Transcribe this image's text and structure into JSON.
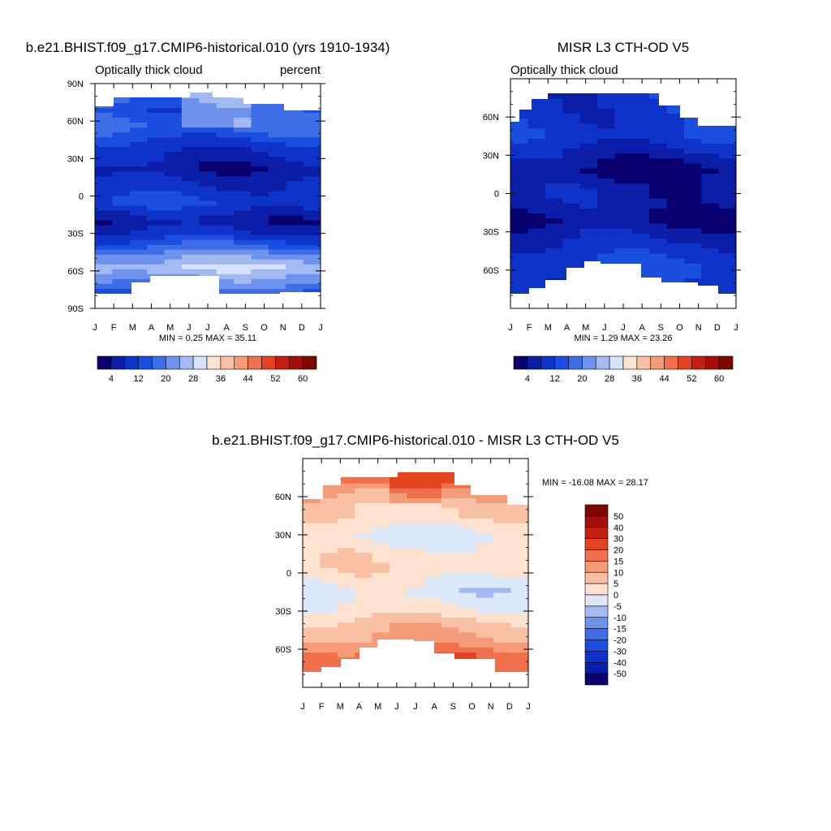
{
  "chart_data": [
    {
      "type": "heatmap",
      "title": "b.e21.BHIST.f09_g17.CMIP6-historical.010 (yrs 1910-1934)",
      "subtitle_left": "Optically thick cloud",
      "subtitle_right": "percent",
      "x_ticks": [
        "J",
        "F",
        "M",
        "A",
        "M",
        "J",
        "J",
        "A",
        "S",
        "O",
        "N",
        "D",
        "J"
      ],
      "y_ticks": [
        "90N",
        "60N",
        "30N",
        "0",
        "30S",
        "60S",
        "90S"
      ],
      "y_values": [
        90,
        60,
        30,
        0,
        -30,
        -60,
        -90
      ],
      "ylim": [
        -90,
        90
      ],
      "stats": "MIN =   0.25 MAX =  35.11",
      "colorbar_labels": [
        "4",
        "12",
        "20",
        "28",
        "36",
        "44",
        "52",
        "60"
      ],
      "colorbar_colors": [
        "#08006e",
        "#0a1ea8",
        "#0d33c8",
        "#1a4ee0",
        "#3d6ee8",
        "#6d93ec",
        "#a2b9f2",
        "#d4e2fb",
        "#fde2d0",
        "#f9c0a4",
        "#f59b78",
        "#ef704a",
        "#e2431e",
        "#c32010",
        "#a40f07",
        "#7d0500"
      ],
      "profile": [
        {
          "lat": 78,
          "v": 18
        },
        {
          "lat": 68,
          "v": 14
        },
        {
          "lat": 55,
          "v": 17
        },
        {
          "lat": 40,
          "v": 10
        },
        {
          "lat": 22,
          "v": 5
        },
        {
          "lat": 8,
          "v": 9
        },
        {
          "lat": -5,
          "v": 12
        },
        {
          "lat": -20,
          "v": 5
        },
        {
          "lat": -32,
          "v": 10
        },
        {
          "lat": -45,
          "v": 20
        },
        {
          "lat": -57,
          "v": 28
        },
        {
          "lat": -68,
          "v": 22
        },
        {
          "lat": -76,
          "v": 16
        }
      ]
    },
    {
      "type": "heatmap",
      "title": "MISR L3 CTH-OD V5",
      "subtitle_left": "Optically thick cloud",
      "x_ticks": [
        "J",
        "F",
        "M",
        "A",
        "M",
        "J",
        "J",
        "A",
        "S",
        "O",
        "N",
        "D",
        "J"
      ],
      "y_ticks": [
        "60N",
        "30N",
        "0",
        "30S",
        "60S"
      ],
      "y_values": [
        60,
        30,
        0,
        -30,
        -60
      ],
      "ylim": [
        -90,
        90
      ],
      "stats": "MIN =   1.29 MAX =  23.26",
      "colorbar_labels": [
        "4",
        "12",
        "20",
        "28",
        "36",
        "44",
        "52",
        "60"
      ],
      "colorbar_colors": [
        "#08006e",
        "#0a1ea8",
        "#0d33c8",
        "#1a4ee0",
        "#3d6ee8",
        "#6d93ec",
        "#a2b9f2",
        "#d4e2fb",
        "#fde2d0",
        "#f9c0a4",
        "#f59b78",
        "#ef704a",
        "#e2431e",
        "#c32010",
        "#a40f07",
        "#7d0500"
      ],
      "profile": [
        {
          "lat": 75,
          "v": 10
        },
        {
          "lat": 60,
          "v": 10
        },
        {
          "lat": 45,
          "v": 11
        },
        {
          "lat": 32,
          "v": 7
        },
        {
          "lat": 18,
          "v": 3
        },
        {
          "lat": 5,
          "v": 6
        },
        {
          "lat": -8,
          "v": 6
        },
        {
          "lat": -20,
          "v": 3
        },
        {
          "lat": -32,
          "v": 7
        },
        {
          "lat": -45,
          "v": 10
        },
        {
          "lat": -58,
          "v": 12
        },
        {
          "lat": -70,
          "v": 10
        }
      ]
    },
    {
      "type": "heatmap",
      "title": "b.e21.BHIST.f09_g17.CMIP6-historical.010 - MISR L3 CTH-OD V5",
      "x_ticks": [
        "J",
        "F",
        "M",
        "A",
        "M",
        "J",
        "J",
        "A",
        "S",
        "O",
        "N",
        "D",
        "J"
      ],
      "y_ticks": [
        "60N",
        "30N",
        "0",
        "30S",
        "60S"
      ],
      "y_values": [
        60,
        30,
        0,
        -30,
        -60
      ],
      "ylim": [
        -90,
        90
      ],
      "stats": "MIN = -16.08 MAX =  28.17",
      "colorbar_labels": [
        "50",
        "40",
        "30",
        "20",
        "15",
        "10",
        "5",
        "0",
        "-5",
        "-10",
        "-15",
        "-20",
        "-30",
        "-40",
        "-50"
      ],
      "colorbar_colors": [
        "#7d0500",
        "#a40f07",
        "#c32010",
        "#e2431e",
        "#ef704a",
        "#f59b78",
        "#f9c0a4",
        "#fde2d0",
        "#dce9fb",
        "#a2b9f2",
        "#6d93ec",
        "#3d6ee8",
        "#1a4ee0",
        "#0d33c8",
        "#0a1ea8",
        "#08006e"
      ],
      "profile": [
        {
          "lat": 75,
          "v": 20
        },
        {
          "lat": 65,
          "v": 12
        },
        {
          "lat": 55,
          "v": 7
        },
        {
          "lat": 40,
          "v": 3
        },
        {
          "lat": 30,
          "v": -2
        },
        {
          "lat": 15,
          "v": 3
        },
        {
          "lat": 0,
          "v": 3
        },
        {
          "lat": -15,
          "v": -3
        },
        {
          "lat": -30,
          "v": 2
        },
        {
          "lat": -42,
          "v": 8
        },
        {
          "lat": -55,
          "v": 12
        },
        {
          "lat": -65,
          "v": 18
        }
      ]
    }
  ]
}
